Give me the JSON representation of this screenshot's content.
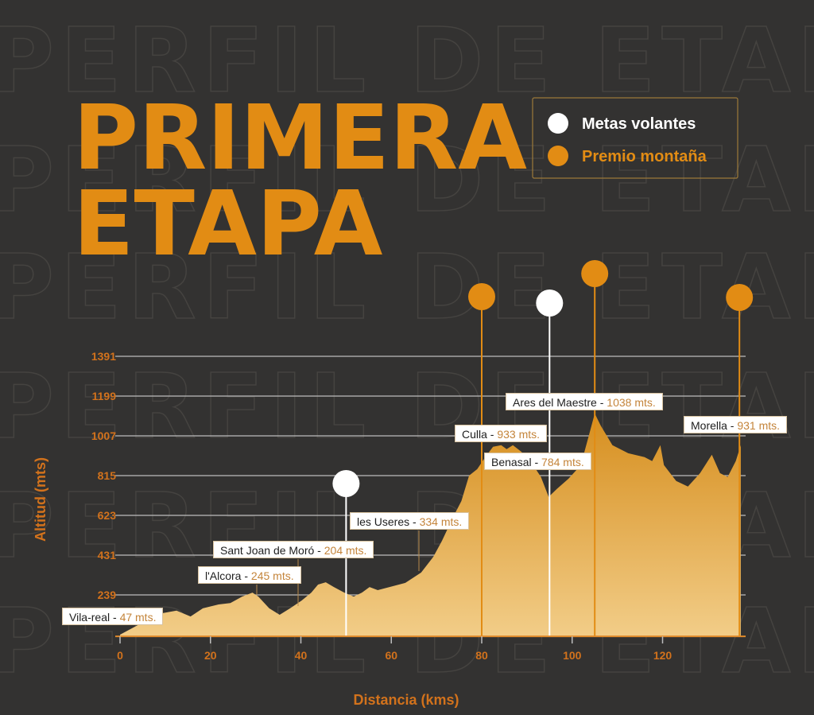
{
  "watermark": "PERFIL DE ETAPA",
  "title_lines": [
    "PRIMERA",
    "ETAPA"
  ],
  "legend": [
    {
      "label": "Metas volantes",
      "color": "#ffffff"
    },
    {
      "label": "Premio montaña",
      "color": "#e28c14"
    }
  ],
  "colors": {
    "background": "#333231",
    "accent": "#e28c14",
    "fill_top": "#d68e1e",
    "fill_bottom": "#f2cd88"
  },
  "chart_data": {
    "type": "area",
    "xlabel": "Distancia (kms)",
    "ylabel": "Altitud (mts)",
    "xlim": [
      0,
      137
    ],
    "ylim": [
      39,
      1391
    ],
    "xticks": [
      0,
      20,
      40,
      60,
      80,
      100,
      120
    ],
    "yticks": [
      239,
      431,
      623,
      815,
      1007,
      1199,
      1391
    ],
    "grid": true,
    "profile": {
      "x": [
        0,
        8.6,
        12.5,
        15.6,
        18.3,
        21.8,
        24.4,
        27,
        29.3,
        30.6,
        33,
        35.3,
        37.6,
        40.2,
        42.3,
        43.8,
        45.5,
        47.3,
        49.6,
        51.7,
        53.5,
        55.2,
        57,
        59.6,
        63.1,
        66.6,
        69.3,
        71.2,
        73.7,
        75.5,
        77.2,
        79,
        80.8,
        82.5,
        84.3,
        85.5,
        86.9,
        88.7,
        90.8,
        93.1,
        94.8,
        96.6,
        99.2,
        101.9,
        103.6,
        105,
        106.3,
        108.9,
        112.4,
        116,
        117.7,
        119.5,
        120.3,
        123,
        125.6,
        128.3,
        130.9,
        132.7,
        134.4,
        136.2,
        137.3
      ],
      "y": [
        47,
        148,
        163,
        135,
        174,
        193,
        200,
        231,
        250,
        231,
        174,
        143,
        174,
        212,
        250,
        289,
        300,
        277,
        250,
        231,
        250,
        277,
        262,
        277,
        297,
        347,
        423,
        500,
        616,
        692,
        815,
        846,
        904,
        954,
        962,
        943,
        962,
        931,
        885,
        808,
        712,
        750,
        800,
        865,
        1000,
        1115,
        1057,
        962,
        923,
        904,
        885,
        962,
        866,
        789,
        762,
        827,
        916,
        827,
        808,
        885,
        962
      ]
    },
    "markers": [
      {
        "type": "Metas volantes",
        "km": 50
      },
      {
        "type": "Premio montaña",
        "km": 80
      },
      {
        "type": "Metas volantes",
        "km": 95
      },
      {
        "type": "Premio montaña",
        "km": 105
      },
      {
        "type": "Premio montaña",
        "km": 137
      }
    ],
    "annotations": [
      {
        "name": "Vila-real",
        "value": "47 mts."
      },
      {
        "name": "l'Alcora",
        "value": "245 mts."
      },
      {
        "name": "Sant Joan de Moró",
        "value": "204 mts."
      },
      {
        "name": "les Useres",
        "value": "334 mts."
      },
      {
        "name": "Culla",
        "value": "933 mts."
      },
      {
        "name": "Benasal",
        "value": "784 mts."
      },
      {
        "name": "Ares del Maestre",
        "value": "1038 mts."
      },
      {
        "name": "Morella",
        "value": "931 mts."
      }
    ],
    "separator": " - "
  }
}
